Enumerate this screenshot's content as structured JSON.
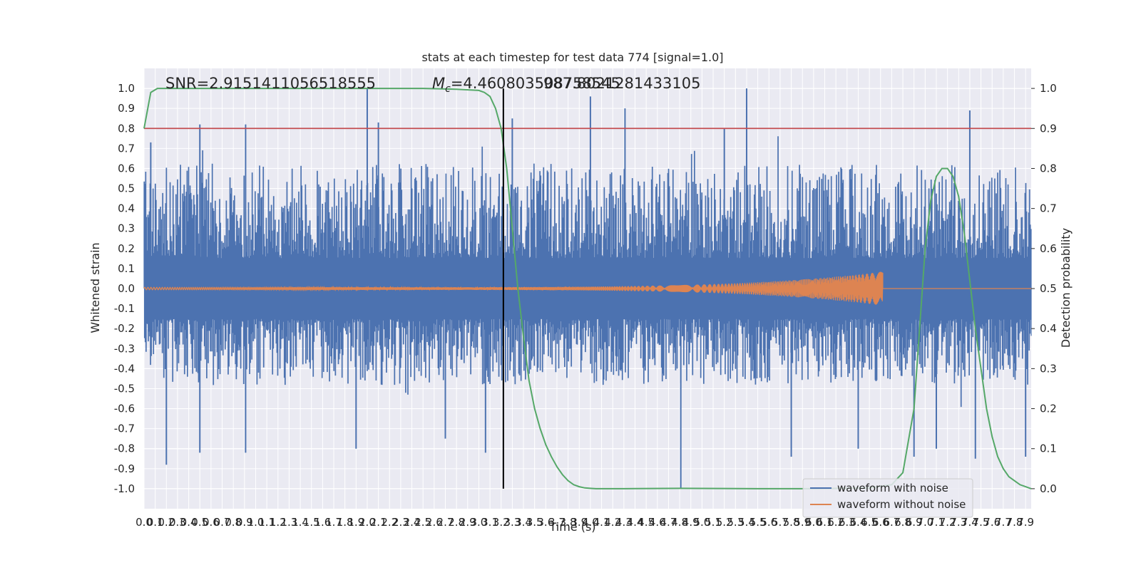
{
  "chart_data": {
    "type": "line",
    "title": "stats at each timestep for test data 774 [signal=1.0]",
    "xlabel": "Time (s)",
    "ylabel": "Whitened strain",
    "y2label": "Detection probability",
    "xlim": [
      0.0,
      7.95
    ],
    "ylim": [
      -1.1,
      1.1
    ],
    "y2lim": [
      -0.05,
      1.05
    ],
    "x_tick_step": 0.1,
    "y_ticks": [
      -1.0,
      -0.9,
      -0.8,
      -0.7,
      -0.6,
      -0.5,
      -0.4,
      -0.3,
      -0.2,
      -0.1,
      0.0,
      0.1,
      0.2,
      0.3,
      0.4,
      0.5,
      0.6,
      0.7,
      0.8,
      0.9,
      1.0
    ],
    "y2_ticks": [
      0.0,
      0.1,
      0.2,
      0.3,
      0.4,
      0.5,
      0.6,
      0.7,
      0.8,
      0.9,
      1.0
    ],
    "grid": true,
    "legend_position": "lower-right",
    "annotations": {
      "snr": "SNR=2.9151411056518555",
      "mc_symbol": "M",
      "mc_subscript": "c",
      "mc_value": "=4.460803508758545",
      "mc_overlap": "987.8021281433105"
    },
    "threshold": {
      "y2": 0.9,
      "color": "#c44e52"
    },
    "vline": {
      "x": 3.22,
      "y_range": [
        -1.0,
        1.0
      ],
      "color": "#000000"
    },
    "series": [
      {
        "name": "waveform with noise",
        "color": "#4c72b0",
        "axis": "left",
        "kind": "noise",
        "typical_envelope": [
          -0.45,
          0.6
        ],
        "peaks": [
          {
            "x": 0.06,
            "y": 0.73
          },
          {
            "x": 0.2,
            "y": -0.88
          },
          {
            "x": 0.5,
            "y": 0.82
          },
          {
            "x": 0.5,
            "y": -0.82
          },
          {
            "x": 0.91,
            "y": 0.82
          },
          {
            "x": 0.91,
            "y": -0.82
          },
          {
            "x": 2.0,
            "y": 1.0
          },
          {
            "x": 2.1,
            "y": 0.83
          },
          {
            "x": 1.9,
            "y": -0.8
          },
          {
            "x": 2.7,
            "y": -0.75
          },
          {
            "x": 3.06,
            "y": -0.82
          },
          {
            "x": 3.3,
            "y": 0.85
          },
          {
            "x": 4.0,
            "y": 0.96
          },
          {
            "x": 4.31,
            "y": 0.9
          },
          {
            "x": 4.81,
            "y": -1.0
          },
          {
            "x": 5.2,
            "y": 0.8
          },
          {
            "x": 5.4,
            "y": 1.0
          },
          {
            "x": 5.8,
            "y": -0.84
          },
          {
            "x": 6.4,
            "y": -0.8
          },
          {
            "x": 6.9,
            "y": -0.84
          },
          {
            "x": 7.1,
            "y": -0.8
          },
          {
            "x": 7.4,
            "y": 0.89
          },
          {
            "x": 7.45,
            "y": -0.85
          },
          {
            "x": 7.9,
            "y": -0.84
          }
        ]
      },
      {
        "name": "waveform without noise",
        "color": "#dd8452",
        "axis": "left",
        "kind": "chirp",
        "t_end": 6.62,
        "amp_start": 0.006,
        "amp_end": 0.085
      },
      {
        "name": "detection probability",
        "color": "#55a868",
        "axis": "right",
        "x": [
          0.0,
          0.06,
          0.12,
          0.2,
          0.5,
          1.0,
          1.5,
          2.0,
          2.5,
          2.8,
          3.0,
          3.05,
          3.1,
          3.15,
          3.2,
          3.25,
          3.3,
          3.35,
          3.4,
          3.45,
          3.5,
          3.55,
          3.6,
          3.65,
          3.7,
          3.75,
          3.8,
          3.85,
          3.9,
          3.95,
          4.0,
          4.05,
          4.1,
          4.3,
          4.8,
          5.5,
          6.0,
          6.5,
          6.7,
          6.8,
          6.9,
          6.95,
          7.0,
          7.05,
          7.1,
          7.15,
          7.2,
          7.25,
          7.3,
          7.35,
          7.4,
          7.45,
          7.5,
          7.55,
          7.6,
          7.65,
          7.7,
          7.75,
          7.8,
          7.85,
          7.9,
          7.95
        ],
        "values": [
          0.9,
          0.99,
          1.0,
          1.0,
          1.0,
          1.0,
          1.0,
          1.0,
          1.0,
          0.998,
          0.995,
          0.99,
          0.98,
          0.95,
          0.9,
          0.8,
          0.65,
          0.5,
          0.38,
          0.27,
          0.2,
          0.15,
          0.11,
          0.08,
          0.055,
          0.035,
          0.02,
          0.01,
          0.005,
          0.002,
          0.001,
          0.0,
          0.0,
          0.0,
          0.001,
          0.0,
          0.0,
          0.002,
          0.01,
          0.04,
          0.2,
          0.4,
          0.6,
          0.72,
          0.78,
          0.8,
          0.8,
          0.78,
          0.73,
          0.64,
          0.52,
          0.4,
          0.3,
          0.2,
          0.13,
          0.08,
          0.05,
          0.03,
          0.02,
          0.01,
          0.005,
          0.0
        ]
      }
    ]
  }
}
